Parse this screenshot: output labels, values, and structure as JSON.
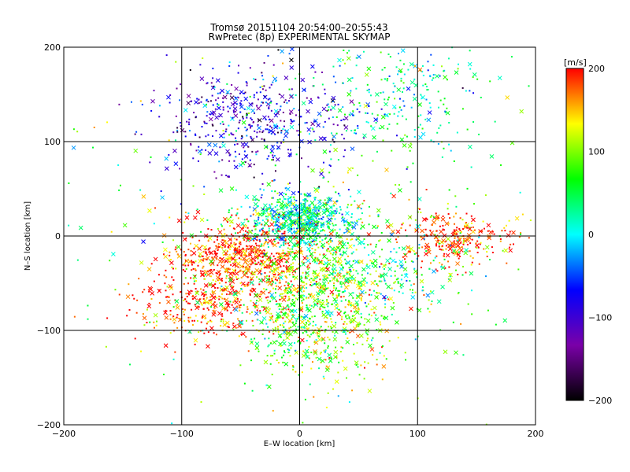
{
  "chart_data": {
    "type": "scatter",
    "title": "Tromsø 20151104 20:54:00–20:55:43",
    "subtitle": "RwPretec (8p) EXPERIMENTAL SKYMAP",
    "xlabel": "E–W location [km]",
    "ylabel": "N–S location [km]",
    "xlim": [
      -200,
      200
    ],
    "ylim": [
      -200,
      200
    ],
    "x_ticks": [
      -200,
      -100,
      0,
      100,
      200
    ],
    "y_ticks": [
      -200,
      -100,
      0,
      100,
      200
    ],
    "x_tick_labels": [
      "−200",
      "−100",
      "0",
      "100",
      "200"
    ],
    "y_tick_labels": [
      "−200",
      "−100",
      "0",
      "100",
      "200"
    ],
    "grid_lines": [
      -100,
      0,
      100
    ],
    "grid": true,
    "markers": [
      "dot",
      "x"
    ],
    "colorbar": {
      "label": "[m/s]",
      "range": [
        -200,
        200
      ],
      "ticks": [
        200,
        100,
        0,
        -100,
        -200
      ],
      "tick_labels": [
        "200",
        "100",
        "0",
        "−100",
        "−200"
      ],
      "colormap": [
        "#000000",
        "#7a00a8",
        "#0000ff",
        "#00ffff",
        "#00ff00",
        "#ffff00",
        "#ff0000"
      ]
    },
    "clusters": [
      {
        "center": [
          -40,
          120
        ],
        "spread": [
          40,
          30
        ],
        "velocity": -95,
        "count": 480
      },
      {
        "center": [
          80,
          150
        ],
        "spread": [
          40,
          35
        ],
        "velocity": 15,
        "count": 260
      },
      {
        "center": [
          0,
          18
        ],
        "spread": [
          22,
          14
        ],
        "velocity": 15,
        "count": 650
      },
      {
        "center": [
          -50,
          -25
        ],
        "spread": [
          30,
          20
        ],
        "velocity": 190,
        "count": 650
      },
      {
        "center": [
          -80,
          -75
        ],
        "spread": [
          30,
          18
        ],
        "velocity": 185,
        "count": 280
      },
      {
        "center": [
          20,
          -60
        ],
        "spread": [
          30,
          40
        ],
        "velocity": 120,
        "count": 600
      },
      {
        "center": [
          130,
          -5
        ],
        "spread": [
          25,
          15
        ],
        "velocity": 185,
        "count": 260
      },
      {
        "center": [
          60,
          -40
        ],
        "spread": [
          40,
          25
        ],
        "velocity": 40,
        "count": 260
      },
      {
        "center": [
          0,
          -90
        ],
        "spread": [
          25,
          30
        ],
        "velocity": 60,
        "count": 280
      },
      {
        "center": [
          0,
          0
        ],
        "spread": [
          110,
          110
        ],
        "velocity": 80,
        "count": 380
      }
    ]
  }
}
